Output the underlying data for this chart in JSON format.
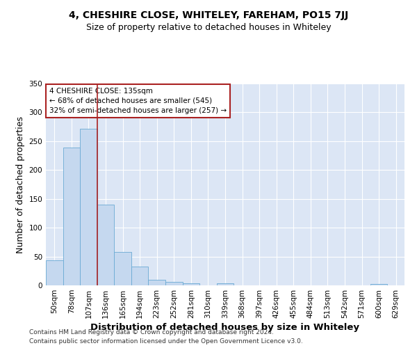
{
  "title": "4, CHESHIRE CLOSE, WHITELEY, FAREHAM, PO15 7JJ",
  "subtitle": "Size of property relative to detached houses in Whiteley",
  "xlabel": "Distribution of detached houses by size in Whiteley",
  "ylabel": "Number of detached properties",
  "footnote1": "Contains HM Land Registry data © Crown copyright and database right 2024.",
  "footnote2": "Contains public sector information licensed under the Open Government Licence v3.0.",
  "bin_labels": [
    "50sqm",
    "78sqm",
    "107sqm",
    "136sqm",
    "165sqm",
    "194sqm",
    "223sqm",
    "252sqm",
    "281sqm",
    "310sqm",
    "339sqm",
    "368sqm",
    "397sqm",
    "426sqm",
    "455sqm",
    "484sqm",
    "513sqm",
    "542sqm",
    "571sqm",
    "600sqm",
    "629sqm"
  ],
  "bar_values": [
    44,
    239,
    271,
    140,
    58,
    33,
    10,
    6,
    4,
    0,
    4,
    0,
    0,
    0,
    0,
    0,
    0,
    0,
    0,
    3,
    0
  ],
  "bar_color": "#c5d8ef",
  "bar_edgecolor": "#6aaad4",
  "vline_color": "#aa2222",
  "annotation_text": "4 CHESHIRE CLOSE: 135sqm\n← 68% of detached houses are smaller (545)\n32% of semi-detached houses are larger (257) →",
  "annotation_box_color": "white",
  "annotation_box_edgecolor": "#aa2222",
  "ylim": [
    0,
    350
  ],
  "yticks": [
    0,
    50,
    100,
    150,
    200,
    250,
    300,
    350
  ],
  "plot_background": "#dce6f5",
  "title_fontsize": 10,
  "subtitle_fontsize": 9,
  "axis_label_fontsize": 9,
  "tick_fontsize": 7.5,
  "footnote_fontsize": 6.5
}
